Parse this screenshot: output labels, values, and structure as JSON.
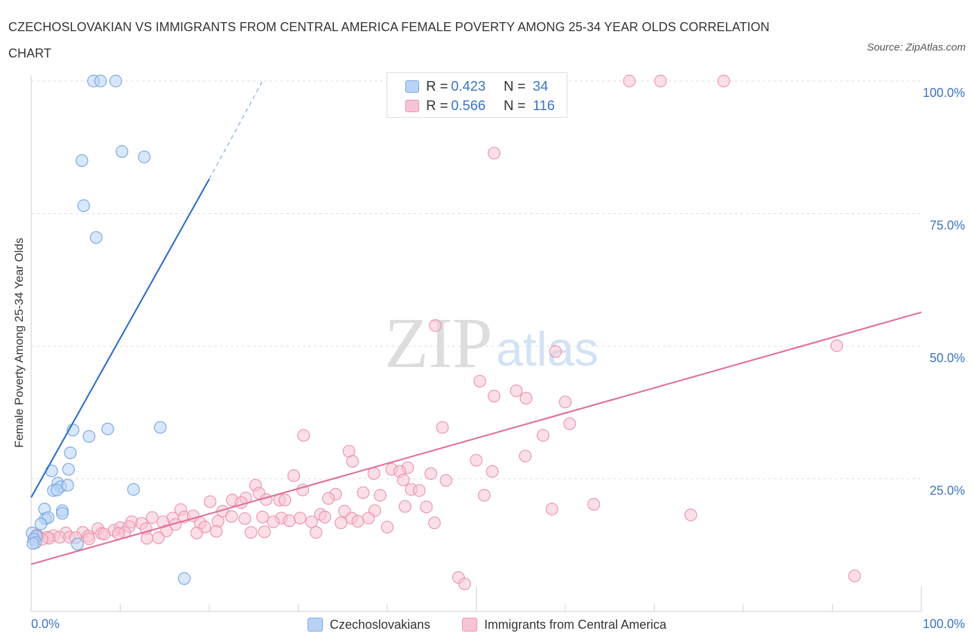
{
  "title": "CZECHOSLOVAKIAN VS IMMIGRANTS FROM CENTRAL AMERICA FEMALE POVERTY AMONG 25-34 YEAR OLDS CORRELATION CHART",
  "source": "Source: ZipAtlas.com",
  "watermark": {
    "zip": "ZIP",
    "atlas": "atlas"
  },
  "colors": {
    "blue_fill": "#b8d3f5",
    "blue_edge": "#7aa7e0",
    "blue_line": "#2c6fc7",
    "pink_fill": "#f7c4d4",
    "pink_edge": "#ec94b0",
    "pink_line": "#e0709a",
    "accent_text": "#3a74c4",
    "grid": "#dddddd"
  },
  "stats_legend": [
    {
      "r_label": "R =",
      "r_value": "0.423",
      "n_label": "N =",
      "n_value": "34"
    },
    {
      "r_label": "R =",
      "r_value": "0.566",
      "n_label": "N =",
      "n_value": "116"
    }
  ],
  "chart_data": {
    "type": "scatter",
    "title": "CZECHOSLOVAKIAN VS IMMIGRANTS FROM CENTRAL AMERICA FEMALE POVERTY AMONG 25-34 YEAR OLDS CORRELATION CHART",
    "xlabel": "",
    "ylabel": "Female Poverty Among 25-34 Year Olds",
    "xlim": [
      0,
      100
    ],
    "ylim": [
      0,
      100
    ],
    "x_ticks": [
      "0.0%",
      "100.0%"
    ],
    "y_ticks": [
      {
        "value": 25,
        "label": "25.0%"
      },
      {
        "value": 50,
        "label": "50.0%"
      },
      {
        "value": 75,
        "label": "75.0%"
      },
      {
        "value": 100,
        "label": "100.0%"
      }
    ],
    "grid": "horizontal dashed",
    "legend_position": "bottom-center",
    "series": [
      {
        "name": "Czechoslovakians",
        "r": 0.423,
        "n": 34,
        "trend": {
          "x0": 0,
          "y0": 21.5,
          "x1": 20,
          "y1": 81.5,
          "dash_x1": 26,
          "dash_y1": 100
        },
        "points": [
          [
            7,
            100
          ],
          [
            7.8,
            100
          ],
          [
            9.5,
            100
          ],
          [
            5.7,
            85
          ],
          [
            10.2,
            86.7
          ],
          [
            12.7,
            85.7
          ],
          [
            5.9,
            76.5
          ],
          [
            7.3,
            70.5
          ],
          [
            4.7,
            34.2
          ],
          [
            6.5,
            33.0
          ],
          [
            8.6,
            34.4
          ],
          [
            14.5,
            34.7
          ],
          [
            4.4,
            29.9
          ],
          [
            2.3,
            26.5
          ],
          [
            4.2,
            26.8
          ],
          [
            3.0,
            24.2
          ],
          [
            3.3,
            23.5
          ],
          [
            4.1,
            23.8
          ],
          [
            2.5,
            22.8
          ],
          [
            2.9,
            22.9
          ],
          [
            11.5,
            23.0
          ],
          [
            1.5,
            19.3
          ],
          [
            3.5,
            19.0
          ],
          [
            3.5,
            18.5
          ],
          [
            1.6,
            17.5
          ],
          [
            1.9,
            17.7
          ],
          [
            1.1,
            16.5
          ],
          [
            0.1,
            14.8
          ],
          [
            0.6,
            14.2
          ],
          [
            0.3,
            13.6
          ],
          [
            0.5,
            13.0
          ],
          [
            0.2,
            12.8
          ],
          [
            5.2,
            12.7
          ],
          [
            17.2,
            6.2
          ]
        ]
      },
      {
        "name": "Immigrants from Central America",
        "r": 0.566,
        "n": 116,
        "trend": {
          "x0": 0,
          "y0": 8.9,
          "x1": 100,
          "y1": 56.4
        },
        "points": [
          [
            67.2,
            100
          ],
          [
            70.7,
            100
          ],
          [
            77.8,
            100
          ],
          [
            52.0,
            86.4
          ],
          [
            45.4,
            53.9
          ],
          [
            58.9,
            49.0
          ],
          [
            50.4,
            43.4
          ],
          [
            52.0,
            40.6
          ],
          [
            54.5,
            41.6
          ],
          [
            55.6,
            40.2
          ],
          [
            60.0,
            39.5
          ],
          [
            46.2,
            34.7
          ],
          [
            60.5,
            35.4
          ],
          [
            30.6,
            33.2
          ],
          [
            57.5,
            33.2
          ],
          [
            35.7,
            30.2
          ],
          [
            55.5,
            29.3
          ],
          [
            36.1,
            28.3
          ],
          [
            42.3,
            27.1
          ],
          [
            50.0,
            28.5
          ],
          [
            38.5,
            26.0
          ],
          [
            40.5,
            26.8
          ],
          [
            41.4,
            26.4
          ],
          [
            44.9,
            26.0
          ],
          [
            51.8,
            26.4
          ],
          [
            29.5,
            25.6
          ],
          [
            41.8,
            24.8
          ],
          [
            46.6,
            24.7
          ],
          [
            25.2,
            23.8
          ],
          [
            42.7,
            23.0
          ],
          [
            43.6,
            22.8
          ],
          [
            25.6,
            22.3
          ],
          [
            30.5,
            22.9
          ],
          [
            34.2,
            22.1
          ],
          [
            37.3,
            22.4
          ],
          [
            39.2,
            21.9
          ],
          [
            50.9,
            21.9
          ],
          [
            22.6,
            21.0
          ],
          [
            24.1,
            21.4
          ],
          [
            26.4,
            21.1
          ],
          [
            27.9,
            21.0
          ],
          [
            28.5,
            21.0
          ],
          [
            33.4,
            21.3
          ],
          [
            20.1,
            20.7
          ],
          [
            23.6,
            20.5
          ],
          [
            42.0,
            19.8
          ],
          [
            44.4,
            19.7
          ],
          [
            58.5,
            19.3
          ],
          [
            63.2,
            20.2
          ],
          [
            74.1,
            18.2
          ],
          [
            16.8,
            19.2
          ],
          [
            21.5,
            18.9
          ],
          [
            32.5,
            18.3
          ],
          [
            35.2,
            18.9
          ],
          [
            38.6,
            19.0
          ],
          [
            13.6,
            17.7
          ],
          [
            15.9,
            17.6
          ],
          [
            17.2,
            17.8
          ],
          [
            18.2,
            18.0
          ],
          [
            22.5,
            17.9
          ],
          [
            24.0,
            17.5
          ],
          [
            26.0,
            17.8
          ],
          [
            28.1,
            17.6
          ],
          [
            30.2,
            17.6
          ],
          [
            33.0,
            17.8
          ],
          [
            36.0,
            17.6
          ],
          [
            37.9,
            17.6
          ],
          [
            11.3,
            16.9
          ],
          [
            12.4,
            16.6
          ],
          [
            14.8,
            16.9
          ],
          [
            16.2,
            16.4
          ],
          [
            19.0,
            16.7
          ],
          [
            21.0,
            17.0
          ],
          [
            27.2,
            16.9
          ],
          [
            29.0,
            17.1
          ],
          [
            31.5,
            16.9
          ],
          [
            34.8,
            16.7
          ],
          [
            36.7,
            17.0
          ],
          [
            45.3,
            16.7
          ],
          [
            7.5,
            15.6
          ],
          [
            9.3,
            15.3
          ],
          [
            10.0,
            15.8
          ],
          [
            11.0,
            16.0
          ],
          [
            12.9,
            15.6
          ],
          [
            15.2,
            15.2
          ],
          [
            19.5,
            15.9
          ],
          [
            20.8,
            15.1
          ],
          [
            26.2,
            15.0
          ],
          [
            40.0,
            15.9
          ],
          [
            3.9,
            14.8
          ],
          [
            5.8,
            14.9
          ],
          [
            6.4,
            14.2
          ],
          [
            7.9,
            14.7
          ],
          [
            10.5,
            14.9
          ],
          [
            2.5,
            14.3
          ],
          [
            3.2,
            14.0
          ],
          [
            4.3,
            14.0
          ],
          [
            5.0,
            13.9
          ],
          [
            1.8,
            14.0
          ],
          [
            2.0,
            13.8
          ],
          [
            0.8,
            14.2
          ],
          [
            1.2,
            13.6
          ],
          [
            0.4,
            13.9
          ],
          [
            0.6,
            14.4
          ],
          [
            6.5,
            13.7
          ],
          [
            8.2,
            14.6
          ],
          [
            9.8,
            14.7
          ],
          [
            13.0,
            13.8
          ],
          [
            14.3,
            13.9
          ],
          [
            18.6,
            14.8
          ],
          [
            24.7,
            14.9
          ],
          [
            32.0,
            14.9
          ],
          [
            48.0,
            6.4
          ],
          [
            48.7,
            5.2
          ],
          [
            92.5,
            6.7
          ],
          [
            90.5,
            50.1
          ]
        ]
      }
    ]
  },
  "bottom_legend": [
    {
      "label": "Czechoslovakians"
    },
    {
      "label": "Immigrants from Central America"
    }
  ]
}
